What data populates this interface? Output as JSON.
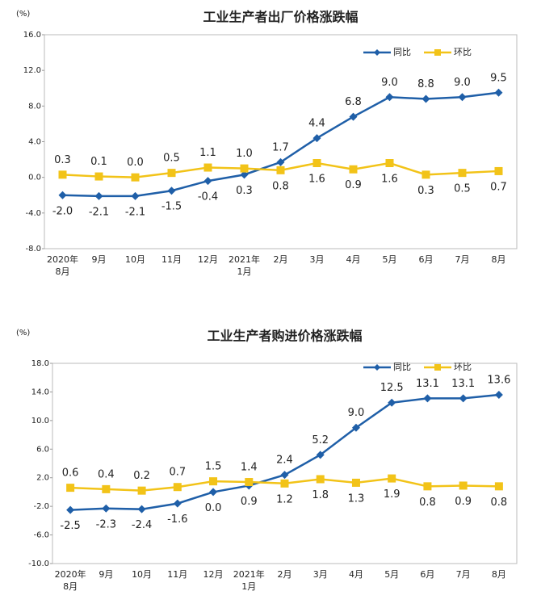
{
  "charts": [
    {
      "chart_data": {
        "type": "line",
        "title": "工业生产者出厂价格涨跌幅",
        "y_unit": "(%)",
        "categories": [
          "2020年\n8月",
          "9月",
          "10月",
          "11月",
          "12月",
          "2021年\n1月",
          "2月",
          "3月",
          "4月",
          "5月",
          "6月",
          "7月",
          "8月"
        ],
        "ylim": [
          -8,
          16
        ],
        "yticks": [
          {
            "value": -8,
            "label": "-8.0"
          },
          {
            "value": -4,
            "label": "-4.0"
          },
          {
            "value": 0,
            "label": "0.0"
          },
          {
            "value": 4,
            "label": "4.0"
          },
          {
            "value": 8,
            "label": "8.0"
          },
          {
            "value": 12,
            "label": "12.0"
          },
          {
            "value": 16,
            "label": "16.0"
          }
        ],
        "legend": "top-right",
        "series": [
          {
            "name": "同比",
            "color": "#1f5fa8",
            "marker": "diamond",
            "values": [
              -2.0,
              -2.1,
              -2.1,
              -1.5,
              -0.4,
              0.3,
              1.7,
              4.4,
              6.8,
              9.0,
              8.8,
              9.0,
              9.5
            ],
            "value_labels": [
              "-2.0",
              "-2.1",
              "-2.1",
              "-1.5",
              "-0.4",
              "0.3",
              "1.7",
              "4.4",
              "6.8",
              "9.0",
              "8.8",
              "9.0",
              "9.5"
            ]
          },
          {
            "name": "环比",
            "color": "#f2c318",
            "marker": "square",
            "values": [
              0.3,
              0.1,
              0.0,
              0.5,
              1.1,
              1.0,
              0.8,
              1.6,
              0.9,
              1.6,
              0.3,
              0.5,
              0.7
            ],
            "value_labels": [
              "0.3",
              "0.1",
              "0.0",
              "0.5",
              "1.1",
              "1.0",
              "0.8",
              "1.6",
              "0.9",
              "1.6",
              "0.3",
              "0.5",
              "0.7"
            ]
          }
        ]
      }
    },
    {
      "chart_data": {
        "type": "line",
        "title": "工业生产者购进价格涨跌幅",
        "y_unit": "(%)",
        "categories": [
          "2020年\n8月",
          "9月",
          "10月",
          "11月",
          "12月",
          "2021年\n1月",
          "2月",
          "3月",
          "4月",
          "5月",
          "6月",
          "7月",
          "8月"
        ],
        "ylim": [
          -10,
          18
        ],
        "yticks": [
          {
            "value": -10,
            "label": "-10.0"
          },
          {
            "value": -6,
            "label": "-6.0"
          },
          {
            "value": -2,
            "label": "-2.0"
          },
          {
            "value": 2,
            "label": "2.0"
          },
          {
            "value": 6,
            "label": "6.0"
          },
          {
            "value": 10,
            "label": "10.0"
          },
          {
            "value": 14,
            "label": "14.0"
          },
          {
            "value": 18,
            "label": "18.0"
          }
        ],
        "legend": "top-right",
        "series": [
          {
            "name": "同比",
            "color": "#1f5fa8",
            "marker": "diamond",
            "values": [
              -2.5,
              -2.3,
              -2.4,
              -1.6,
              0.0,
              0.9,
              2.4,
              5.2,
              9.0,
              12.5,
              13.1,
              13.1,
              13.6
            ],
            "value_labels": [
              "-2.5",
              "-2.3",
              "-2.4",
              "-1.6",
              "0.0",
              "0.9",
              "2.4",
              "5.2",
              "9.0",
              "12.5",
              "13.1",
              "13.1",
              "13.6"
            ]
          },
          {
            "name": "环比",
            "color": "#f2c318",
            "marker": "square",
            "values": [
              0.6,
              0.4,
              0.2,
              0.7,
              1.5,
              1.4,
              1.2,
              1.8,
              1.3,
              1.9,
              0.8,
              0.9,
              0.8
            ],
            "value_labels": [
              "0.6",
              "0.4",
              "0.2",
              "0.7",
              "1.5",
              "1.4",
              "1.2",
              "1.8",
              "1.3",
              "1.9",
              "0.8",
              "0.9",
              "0.8"
            ]
          }
        ]
      }
    }
  ]
}
